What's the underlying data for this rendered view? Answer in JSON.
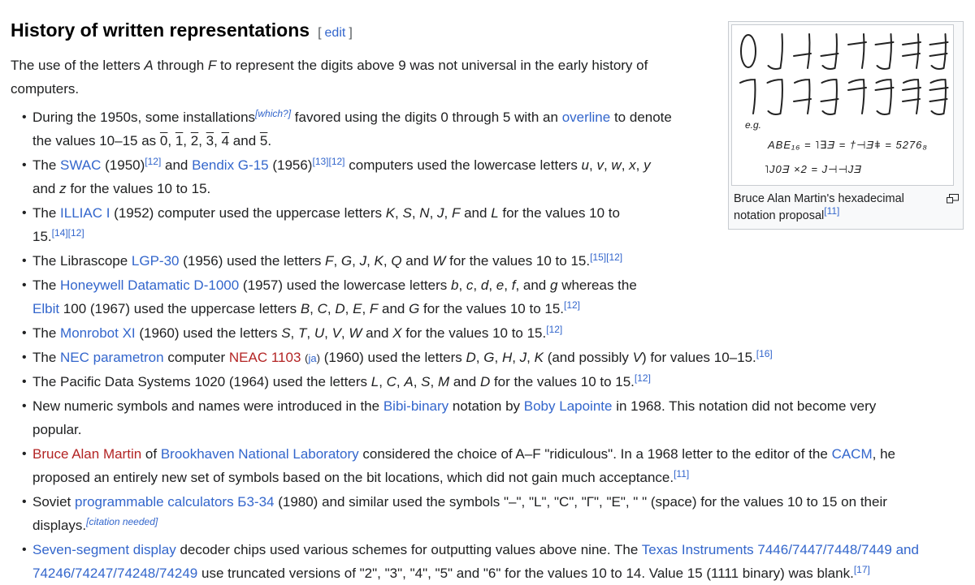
{
  "theme": {
    "link_color": "#3366cc",
    "redlink_color": "#b32424",
    "text_color": "#202122",
    "thumb_border": "#c8ccd1",
    "thumb_background": "#f8f9fa"
  },
  "heading": {
    "title": "History of written representations",
    "bracket_open": "[",
    "edit_label": "edit",
    "bracket_close": "]"
  },
  "intro": {
    "lines": [
      [
        {
          "t": "The use of the letters ",
          "s": "p"
        },
        {
          "t": "A",
          "s": "i"
        },
        {
          "t": " through ",
          "s": "p"
        },
        {
          "t": "F",
          "s": "i"
        },
        {
          "t": " to represent the digits above 9 was not universal in the early history of",
          "s": "p"
        }
      ],
      [
        {
          "t": "computers.",
          "s": "p"
        }
      ]
    ]
  },
  "bullets": [
    {
      "lines": [
        [
          {
            "t": "During the 1950s, some installations",
            "s": "p"
          },
          {
            "t": "[which?]",
            "s": "supi"
          },
          {
            "t": " favored using the digits 0 through 5 with an ",
            "s": "p"
          },
          {
            "t": "overline",
            "s": "a"
          },
          {
            "t": " to denote",
            "s": "p"
          }
        ],
        [
          {
            "t": "the values 10–15 as ",
            "s": "p"
          },
          {
            "t": "0",
            "s": "ov"
          },
          {
            "t": ", ",
            "s": "p"
          },
          {
            "t": "1",
            "s": "ov"
          },
          {
            "t": ", ",
            "s": "p"
          },
          {
            "t": "2",
            "s": "ov"
          },
          {
            "t": ", ",
            "s": "p"
          },
          {
            "t": "3",
            "s": "ov"
          },
          {
            "t": ", ",
            "s": "p"
          },
          {
            "t": "4",
            "s": "ov"
          },
          {
            "t": " and ",
            "s": "p"
          },
          {
            "t": "5",
            "s": "ov"
          },
          {
            "t": ".",
            "s": "p"
          }
        ]
      ]
    },
    {
      "lines": [
        [
          {
            "t": "The ",
            "s": "p"
          },
          {
            "t": "SWAC",
            "s": "a"
          },
          {
            "t": " (1950)",
            "s": "p"
          },
          {
            "t": "[12]",
            "s": "sup"
          },
          {
            "t": " and ",
            "s": "p"
          },
          {
            "t": "Bendix G-15",
            "s": "a"
          },
          {
            "t": " (1956)",
            "s": "p"
          },
          {
            "t": "[13]",
            "s": "sup"
          },
          {
            "t": "[12]",
            "s": "sup"
          },
          {
            "t": " computers used the lowercase letters ",
            "s": "p"
          },
          {
            "t": "u",
            "s": "i"
          },
          {
            "t": ", ",
            "s": "p"
          },
          {
            "t": "v",
            "s": "i"
          },
          {
            "t": ", ",
            "s": "p"
          },
          {
            "t": "w",
            "s": "i"
          },
          {
            "t": ", ",
            "s": "p"
          },
          {
            "t": "x",
            "s": "i"
          },
          {
            "t": ", ",
            "s": "p"
          },
          {
            "t": "y",
            "s": "i"
          }
        ],
        [
          {
            "t": "and ",
            "s": "p"
          },
          {
            "t": "z",
            "s": "i"
          },
          {
            "t": " for the values 10 to 15.",
            "s": "p"
          }
        ]
      ]
    },
    {
      "lines": [
        [
          {
            "t": "The ",
            "s": "p"
          },
          {
            "t": "ILLIAC I",
            "s": "a"
          },
          {
            "t": " (1952) computer used the uppercase letters ",
            "s": "p"
          },
          {
            "t": "K",
            "s": "i"
          },
          {
            "t": ", ",
            "s": "p"
          },
          {
            "t": "S",
            "s": "i"
          },
          {
            "t": ", ",
            "s": "p"
          },
          {
            "t": "N",
            "s": "i"
          },
          {
            "t": ", ",
            "s": "p"
          },
          {
            "t": "J",
            "s": "i"
          },
          {
            "t": ", ",
            "s": "p"
          },
          {
            "t": "F",
            "s": "i"
          },
          {
            "t": " and ",
            "s": "p"
          },
          {
            "t": "L",
            "s": "i"
          },
          {
            "t": " for the values 10 to",
            "s": "p"
          }
        ],
        [
          {
            "t": "15.",
            "s": "p"
          },
          {
            "t": "[14]",
            "s": "sup"
          },
          {
            "t": "[12]",
            "s": "sup"
          }
        ]
      ]
    },
    {
      "lines": [
        [
          {
            "t": "The Librascope ",
            "s": "p"
          },
          {
            "t": "LGP-30",
            "s": "a"
          },
          {
            "t": " (1956) used the letters ",
            "s": "p"
          },
          {
            "t": "F",
            "s": "i"
          },
          {
            "t": ", ",
            "s": "p"
          },
          {
            "t": "G",
            "s": "i"
          },
          {
            "t": ", ",
            "s": "p"
          },
          {
            "t": "J",
            "s": "i"
          },
          {
            "t": ", ",
            "s": "p"
          },
          {
            "t": "K",
            "s": "i"
          },
          {
            "t": ", ",
            "s": "p"
          },
          {
            "t": "Q",
            "s": "i"
          },
          {
            "t": " and ",
            "s": "p"
          },
          {
            "t": "W",
            "s": "i"
          },
          {
            "t": " for the values 10 to 15.",
            "s": "p"
          },
          {
            "t": "[15]",
            "s": "sup"
          },
          {
            "t": "[12]",
            "s": "sup"
          }
        ]
      ]
    },
    {
      "lines": [
        [
          {
            "t": "The ",
            "s": "p"
          },
          {
            "t": "Honeywell Datamatic D-1000",
            "s": "a"
          },
          {
            "t": " (1957) used the lowercase letters ",
            "s": "p"
          },
          {
            "t": "b",
            "s": "i"
          },
          {
            "t": ", ",
            "s": "p"
          },
          {
            "t": "c",
            "s": "i"
          },
          {
            "t": ", ",
            "s": "p"
          },
          {
            "t": "d",
            "s": "i"
          },
          {
            "t": ", ",
            "s": "p"
          },
          {
            "t": "e",
            "s": "i"
          },
          {
            "t": ", ",
            "s": "p"
          },
          {
            "t": "f",
            "s": "i"
          },
          {
            "t": ", and ",
            "s": "p"
          },
          {
            "t": "g",
            "s": "i"
          },
          {
            "t": " whereas the",
            "s": "p"
          }
        ],
        [
          {
            "t": "Elbit",
            "s": "a"
          },
          {
            "t": " 100 (1967) used the uppercase letters ",
            "s": "p"
          },
          {
            "t": "B",
            "s": "i"
          },
          {
            "t": ", ",
            "s": "p"
          },
          {
            "t": "C",
            "s": "i"
          },
          {
            "t": ", ",
            "s": "p"
          },
          {
            "t": "D",
            "s": "i"
          },
          {
            "t": ", ",
            "s": "p"
          },
          {
            "t": "E",
            "s": "i"
          },
          {
            "t": ", ",
            "s": "p"
          },
          {
            "t": "F",
            "s": "i"
          },
          {
            "t": " and ",
            "s": "p"
          },
          {
            "t": "G",
            "s": "i"
          },
          {
            "t": " for the values 10 to 15.",
            "s": "p"
          },
          {
            "t": "[12]",
            "s": "sup"
          }
        ]
      ]
    },
    {
      "lines": [
        [
          {
            "t": "The ",
            "s": "p"
          },
          {
            "t": "Monrobot XI",
            "s": "a"
          },
          {
            "t": " (1960) used the letters ",
            "s": "p"
          },
          {
            "t": "S",
            "s": "i"
          },
          {
            "t": ", ",
            "s": "p"
          },
          {
            "t": "T",
            "s": "i"
          },
          {
            "t": ", ",
            "s": "p"
          },
          {
            "t": "U",
            "s": "i"
          },
          {
            "t": ", ",
            "s": "p"
          },
          {
            "t": "V",
            "s": "i"
          },
          {
            "t": ", ",
            "s": "p"
          },
          {
            "t": "W",
            "s": "i"
          },
          {
            "t": " and ",
            "s": "p"
          },
          {
            "t": "X",
            "s": "i"
          },
          {
            "t": " for the values 10 to 15.",
            "s": "p"
          },
          {
            "t": "[12]",
            "s": "sup"
          }
        ]
      ]
    },
    {
      "lines": [
        [
          {
            "t": "The ",
            "s": "p"
          },
          {
            "t": "NEC parametron",
            "s": "a"
          },
          {
            "t": " computer ",
            "s": "p"
          },
          {
            "t": "NEAC 1103",
            "s": "r"
          },
          {
            "t": " ",
            "s": "p"
          },
          {
            "t": "(",
            "s": "sp"
          },
          {
            "t": "ja",
            "s": "sa"
          },
          {
            "t": ")",
            "s": "sp"
          },
          {
            "t": " (1960) used the letters ",
            "s": "p"
          },
          {
            "t": "D",
            "s": "i"
          },
          {
            "t": ", ",
            "s": "p"
          },
          {
            "t": "G",
            "s": "i"
          },
          {
            "t": ", ",
            "s": "p"
          },
          {
            "t": "H",
            "s": "i"
          },
          {
            "t": ", ",
            "s": "p"
          },
          {
            "t": "J",
            "s": "i"
          },
          {
            "t": ", ",
            "s": "p"
          },
          {
            "t": "K",
            "s": "i"
          },
          {
            "t": " (and possibly ",
            "s": "p"
          },
          {
            "t": "V",
            "s": "i"
          },
          {
            "t": ") for values 10–15.",
            "s": "p"
          },
          {
            "t": "[16]",
            "s": "sup"
          }
        ]
      ]
    },
    {
      "lines": [
        [
          {
            "t": "The Pacific Data Systems 1020 (1964) used the letters ",
            "s": "p"
          },
          {
            "t": "L",
            "s": "i"
          },
          {
            "t": ", ",
            "s": "p"
          },
          {
            "t": "C",
            "s": "i"
          },
          {
            "t": ", ",
            "s": "p"
          },
          {
            "t": "A",
            "s": "i"
          },
          {
            "t": ", ",
            "s": "p"
          },
          {
            "t": "S",
            "s": "i"
          },
          {
            "t": ", ",
            "s": "p"
          },
          {
            "t": "M",
            "s": "i"
          },
          {
            "t": " and ",
            "s": "p"
          },
          {
            "t": "D",
            "s": "i"
          },
          {
            "t": " for the values 10 to 15.",
            "s": "p"
          },
          {
            "t": "[12]",
            "s": "sup"
          }
        ]
      ]
    },
    {
      "lines": [
        [
          {
            "t": "New numeric symbols and names were introduced in the ",
            "s": "p"
          },
          {
            "t": "Bibi-binary",
            "s": "a"
          },
          {
            "t": " notation by ",
            "s": "p"
          },
          {
            "t": "Boby Lapointe",
            "s": "a"
          },
          {
            "t": " in 1968. This notation did not become very",
            "s": "p"
          }
        ],
        [
          {
            "t": "popular.",
            "s": "p"
          }
        ]
      ]
    },
    {
      "lines": [
        [
          {
            "t": "Bruce Alan Martin",
            "s": "r"
          },
          {
            "t": " of ",
            "s": "p"
          },
          {
            "t": "Brookhaven National Laboratory",
            "s": "a"
          },
          {
            "t": " considered the choice of A–F \"ridiculous\". In a 1968 letter to the editor of the ",
            "s": "p"
          },
          {
            "t": "CACM",
            "s": "a"
          },
          {
            "t": ", he",
            "s": "p"
          }
        ],
        [
          {
            "t": "proposed an entirely new set of symbols based on the bit locations, which did not gain much acceptance.",
            "s": "p"
          },
          {
            "t": "[11]",
            "s": "sup"
          }
        ]
      ]
    },
    {
      "lines": [
        [
          {
            "t": "Soviet ",
            "s": "p"
          },
          {
            "t": "programmable calculators Б3-34",
            "s": "a"
          },
          {
            "t": " (1980) and similar used the symbols \"–\", \"L\", \"C\", \"Г\", \"E\", \" \" (space) for the values 10 to 15 on their",
            "s": "p"
          }
        ],
        [
          {
            "t": "displays.",
            "s": "p"
          },
          {
            "t": "[citation needed]",
            "s": "supi"
          }
        ]
      ]
    },
    {
      "lines": [
        [
          {
            "t": "Seven-segment display",
            "s": "a"
          },
          {
            "t": " decoder chips used various schemes for outputting values above nine. The ",
            "s": "p"
          },
          {
            "t": "Texas Instruments 7446/7447/7448/7449 and",
            "s": "a"
          }
        ],
        [
          {
            "t": "74246/74247/74248/74249",
            "s": "a"
          },
          {
            "t": " use truncated versions of \"2\", \"3\", \"4\", \"5\" and \"6\" for the values 10 to 14. Value 15 (1111 binary) was blank.",
            "s": "p"
          },
          {
            "t": "[17]",
            "s": "sup"
          }
        ]
      ]
    }
  ],
  "figure": {
    "glyph_rows": [
      [
        {
          "v": "0",
          "oval": true
        },
        {
          "v": "1",
          "bh": true
        },
        {
          "v": "2",
          "mb": true
        },
        {
          "v": "3",
          "mb": true,
          "bh": true
        },
        {
          "v": "4",
          "tb": true
        },
        {
          "v": "5",
          "tb": true,
          "bh": true
        },
        {
          "v": "6",
          "tb": true,
          "mb": true
        },
        {
          "v": "7",
          "tb": true,
          "mb": true,
          "bh": true
        }
      ],
      [
        {
          "v": "8",
          "th": true
        },
        {
          "v": "9",
          "th": true,
          "bh": true
        },
        {
          "v": "A",
          "th": true,
          "mb": true
        },
        {
          "v": "B",
          "th": true,
          "mb": true,
          "bh": true
        },
        {
          "v": "C",
          "th": true,
          "tb": true
        },
        {
          "v": "D",
          "th": true,
          "tb": true,
          "bh": true
        },
        {
          "v": "E",
          "th": true,
          "tb": true,
          "mb": true
        },
        {
          "v": "F",
          "th": true,
          "tb": true,
          "mb": true,
          "bh": true
        }
      ]
    ],
    "eg_label": "e.g.",
    "equations": [
      "ABE₁₆ = ˥∃Ǝ = †⊣Ǝǂ = 5276₈",
      "˥J0Ǝ ×2 = J⊣⊣JƎ"
    ],
    "caption": [
      {
        "t": "Bruce Alan Martin's hexadecimal notation proposal",
        "s": "p"
      },
      {
        "t": "[11]",
        "s": "sup"
      }
    ]
  }
}
